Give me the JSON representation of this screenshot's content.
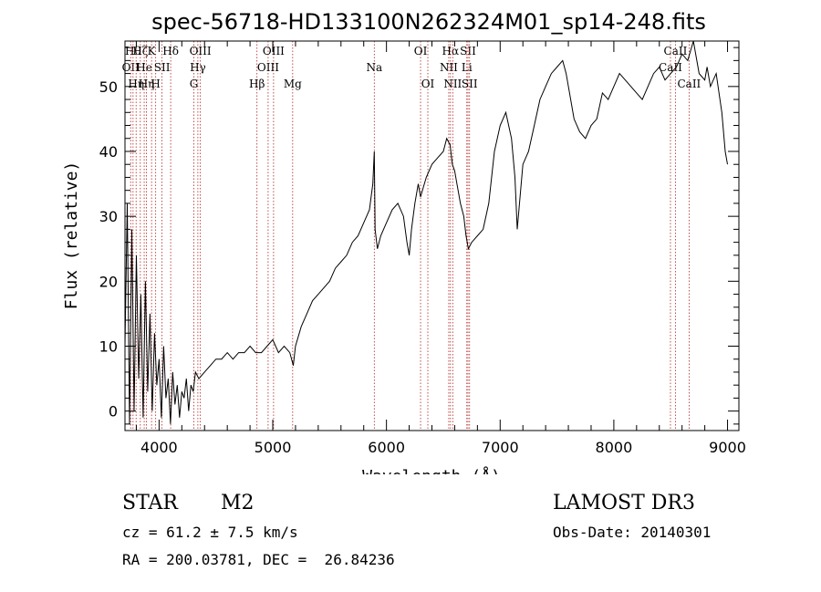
{
  "chart_data": {
    "type": "line",
    "title": "spec-56718-HD133100N262324M01_sp14-248.fits",
    "xlabel": "Wavelength (Å)",
    "ylabel": "Flux (relative)",
    "xlim": [
      3700,
      9100
    ],
    "ylim": [
      -3,
      57
    ],
    "xticks": [
      4000,
      5000,
      6000,
      7000,
      8000,
      9000
    ],
    "yticks": [
      0,
      10,
      20,
      30,
      40,
      50
    ],
    "grid": false,
    "line_color": "#000000",
    "marker_color": "#b22222",
    "series": [
      {
        "x": [
          3700,
          3720,
          3740,
          3760,
          3780,
          3800,
          3820,
          3840,
          3860,
          3880,
          3900,
          3920,
          3940,
          3960,
          3980,
          4000,
          4020,
          4040,
          4060,
          4080,
          4100,
          4120,
          4140,
          4160,
          4180,
          4200,
          4220,
          4240,
          4260,
          4280,
          4300,
          4320,
          4350,
          4400,
          4450,
          4500,
          4550,
          4600,
          4650,
          4700,
          4750,
          4800,
          4850,
          4900,
          4950,
          5000,
          5050,
          5100,
          5150,
          5180,
          5200,
          5250,
          5300,
          5350,
          5400,
          5450,
          5500,
          5550,
          5600,
          5650,
          5700,
          5750,
          5800,
          5850,
          5880,
          5893,
          5900,
          5920,
          5950,
          6000,
          6050,
          6100,
          6150,
          6180,
          6200,
          6220,
          6250,
          6280,
          6300,
          6350,
          6400,
          6450,
          6500,
          6530,
          6560,
          6580,
          6600,
          6620,
          6650,
          6680,
          6700,
          6720,
          6750,
          6800,
          6850,
          6900,
          6950,
          7000,
          7050,
          7100,
          7130,
          7150,
          7200,
          7250,
          7300,
          7350,
          7400,
          7450,
          7500,
          7550,
          7580,
          7600,
          7650,
          7700,
          7750,
          7800,
          7850,
          7900,
          7950,
          8000,
          8050,
          8100,
          8150,
          8200,
          8250,
          8300,
          8350,
          8400,
          8450,
          8500,
          8550,
          8600,
          8650,
          8700,
          8750,
          8800,
          8820,
          8850,
          8900,
          8950,
          8980,
          9000
        ],
        "y": [
          10,
          32,
          -2,
          28,
          0,
          24,
          5,
          18,
          -1,
          20,
          3,
          15,
          0,
          12,
          4,
          8,
          -1,
          10,
          2,
          5,
          -2,
          6,
          1,
          4,
          -1,
          3,
          2,
          5,
          0,
          4,
          3,
          6,
          5,
          6,
          7,
          8,
          8,
          9,
          8,
          9,
          9,
          10,
          9,
          9,
          10,
          11,
          9,
          10,
          9,
          7,
          10,
          13,
          15,
          17,
          18,
          19,
          20,
          22,
          23,
          24,
          26,
          27,
          29,
          31,
          35,
          40,
          28,
          25,
          27,
          29,
          31,
          32,
          30,
          26,
          24,
          28,
          32,
          35,
          33,
          36,
          38,
          39,
          40,
          42,
          41,
          38,
          37,
          35,
          32,
          30,
          27,
          25,
          26,
          27,
          28,
          32,
          40,
          44,
          46,
          42,
          36,
          28,
          38,
          40,
          44,
          48,
          50,
          52,
          53,
          54,
          52,
          50,
          45,
          43,
          42,
          44,
          45,
          49,
          48,
          50,
          52,
          51,
          50,
          49,
          48,
          50,
          52,
          53,
          51,
          52,
          53,
          55,
          54,
          57,
          52,
          51,
          53,
          50,
          52,
          46,
          40,
          38
        ]
      }
    ],
    "line_markers": [
      {
        "wl": 3750,
        "label": "OII",
        "row": 1
      },
      {
        "wl": 3771,
        "label": "Hθ",
        "row": 0
      },
      {
        "wl": 3798,
        "label": "Hη",
        "row": 2
      },
      {
        "wl": 3835,
        "label": "Hζ",
        "row": 0
      },
      {
        "wl": 3869,
        "label": "He",
        "row": 1
      },
      {
        "wl": 3889,
        "label": "Hη",
        "row": 2
      },
      {
        "wl": 3934,
        "label": "K",
        "row": 0
      },
      {
        "wl": 3970,
        "label": "H",
        "row": 2
      },
      {
        "wl": 4026,
        "label": "SII",
        "row": 1
      },
      {
        "wl": 4102,
        "label": "Hδ",
        "row": 0
      },
      {
        "wl": 4306,
        "label": "G",
        "row": 2
      },
      {
        "wl": 4341,
        "label": "Hγ",
        "row": 1
      },
      {
        "wl": 4363,
        "label": "OIII",
        "row": 0
      },
      {
        "wl": 4861,
        "label": "Hβ",
        "row": 2
      },
      {
        "wl": 4959,
        "label": "OIII",
        "row": 1
      },
      {
        "wl": 5007,
        "label": "OIII",
        "row": 0
      },
      {
        "wl": 5175,
        "label": "Mg",
        "row": 2
      },
      {
        "wl": 5893,
        "label": "Na",
        "row": 1
      },
      {
        "wl": 6300,
        "label": "OI",
        "row": 0
      },
      {
        "wl": 6364,
        "label": "OI",
        "row": 2
      },
      {
        "wl": 6548,
        "label": "NII",
        "row": 1
      },
      {
        "wl": 6563,
        "label": "Hα",
        "row": 0
      },
      {
        "wl": 6583,
        "label": "NII",
        "row": 2
      },
      {
        "wl": 6707,
        "label": "Li",
        "row": 1
      },
      {
        "wl": 6717,
        "label": "SII",
        "row": 0
      },
      {
        "wl": 6731,
        "label": "SII",
        "row": 2
      },
      {
        "wl": 8498,
        "label": "CaII",
        "row": 1
      },
      {
        "wl": 8542,
        "label": "CaII",
        "row": 0
      },
      {
        "wl": 8662,
        "label": "CaII",
        "row": 2
      }
    ]
  },
  "info": {
    "class_label": "STAR",
    "subclass": "M2",
    "survey": "LAMOST DR3",
    "cz": "cz = 61.2 ± 7.5 km/s",
    "obs_date": "Obs-Date: 20140301",
    "coords": "RA = 200.03781, DEC =  26.84236"
  }
}
